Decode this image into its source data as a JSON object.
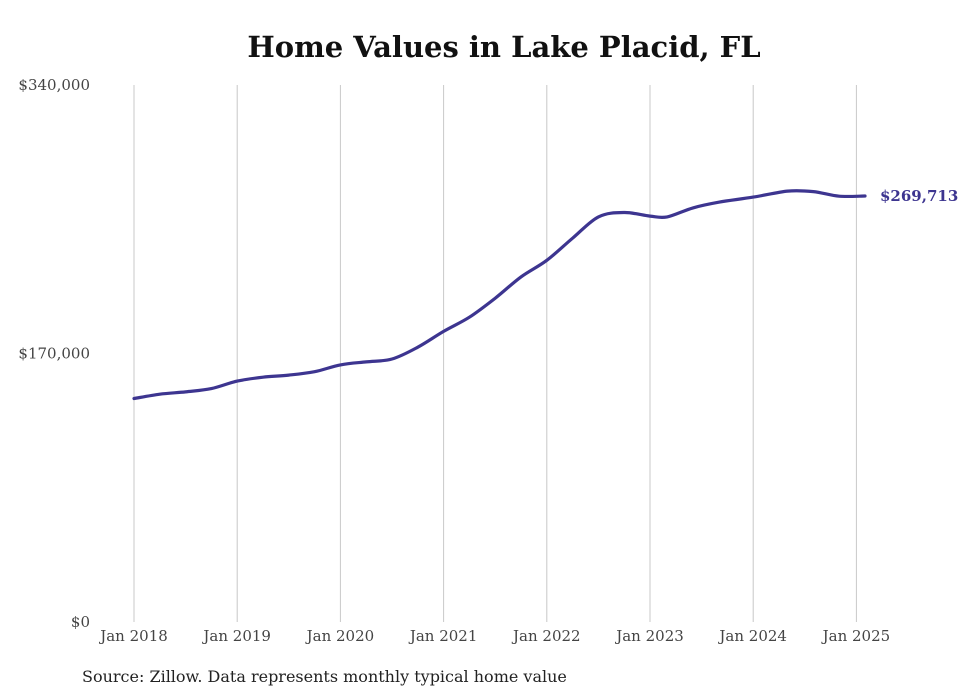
{
  "title": "Home Values in Lake Placid, FL",
  "source": "Source: Zillow. Data represents monthly typical home value",
  "colors": {
    "line": "#3d3590",
    "grid": "#c8c8c8",
    "axis_text": "#444444"
  },
  "chart_data": {
    "type": "line",
    "title": "Home Values in Lake Placid, FL",
    "xlabel": "",
    "ylabel": "",
    "grid": "vertical",
    "ylim": [
      0,
      340000
    ],
    "y_ticks": [
      {
        "value": 0,
        "label": "$0"
      },
      {
        "value": 170000,
        "label": "$170,000"
      },
      {
        "value": 340000,
        "label": "$340,000"
      }
    ],
    "x_ticks": [
      {
        "value": "2018-01",
        "label": "Jan 2018"
      },
      {
        "value": "2019-01",
        "label": "Jan 2019"
      },
      {
        "value": "2020-01",
        "label": "Jan 2020"
      },
      {
        "value": "2021-01",
        "label": "Jan 2021"
      },
      {
        "value": "2022-01",
        "label": "Jan 2022"
      },
      {
        "value": "2023-01",
        "label": "Jan 2023"
      },
      {
        "value": "2024-01",
        "label": "Jan 2024"
      },
      {
        "value": "2025-01",
        "label": "Jan 2025"
      }
    ],
    "end_label": "$269,713",
    "series": [
      {
        "points": [
          [
            "2018-01",
            141500
          ],
          [
            "2018-04",
            144200
          ],
          [
            "2018-07",
            145700
          ],
          [
            "2018-10",
            147800
          ],
          [
            "2019-01",
            152500
          ],
          [
            "2019-04",
            155000
          ],
          [
            "2019-07",
            156300
          ],
          [
            "2019-10",
            158500
          ],
          [
            "2020-01",
            162800
          ],
          [
            "2020-04",
            164700
          ],
          [
            "2020-07",
            166500
          ],
          [
            "2020-10",
            174000
          ],
          [
            "2021-01",
            184000
          ],
          [
            "2021-04",
            193000
          ],
          [
            "2021-07",
            205000
          ],
          [
            "2021-10",
            218500
          ],
          [
            "2022-01",
            229000
          ],
          [
            "2022-04",
            243000
          ],
          [
            "2022-07",
            256500
          ],
          [
            "2022-10",
            259300
          ],
          [
            "2023-01",
            257000
          ],
          [
            "2023-03",
            256500
          ],
          [
            "2023-06",
            262200
          ],
          [
            "2023-09",
            265800
          ],
          [
            "2024-01",
            269000
          ],
          [
            "2024-05",
            272800
          ],
          [
            "2024-08",
            272500
          ],
          [
            "2024-11",
            269600
          ],
          [
            "2025-02",
            269713
          ]
        ]
      }
    ]
  }
}
